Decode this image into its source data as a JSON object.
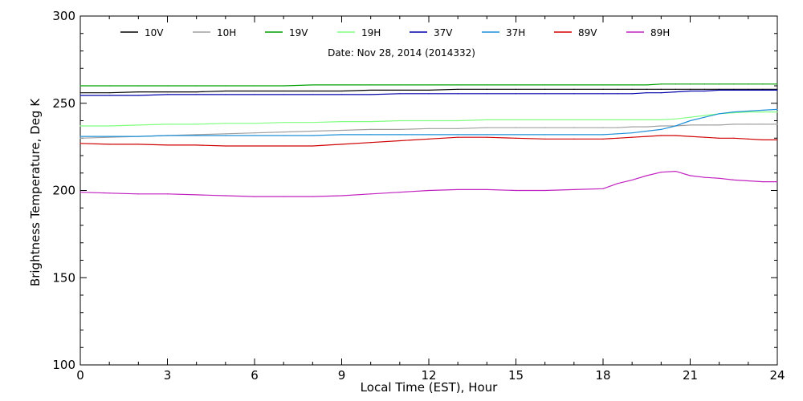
{
  "chart_data": {
    "type": "line",
    "subtitle": "Date: Nov 28, 2014 (2014332)",
    "xlabel": "Local Time (EST), Hour",
    "ylabel": "Brightness Temperature, Deg K",
    "xlim": [
      0,
      24
    ],
    "ylim": [
      100,
      300
    ],
    "x_ticks": [
      "0",
      "3",
      "6",
      "9",
      "12",
      "15",
      "18",
      "21",
      "24"
    ],
    "y_ticks": [
      "100",
      "150",
      "200",
      "250",
      "300"
    ],
    "grid": false,
    "legend_position": "top",
    "x": [
      0,
      1,
      2,
      3,
      4,
      5,
      6,
      7,
      8,
      9,
      10,
      11,
      12,
      13,
      14,
      15,
      16,
      17,
      18,
      18.5,
      19,
      19.5,
      20,
      20.5,
      21,
      21.5,
      22,
      22.5,
      23,
      23.5,
      24
    ],
    "series": [
      {
        "name": "10V",
        "color": "#000000",
        "values": [
          256,
          256,
          256.5,
          256.5,
          256.5,
          257,
          257,
          257,
          257,
          257,
          257.5,
          257.5,
          257.5,
          258,
          258,
          258,
          258,
          258,
          258,
          258,
          258,
          258,
          258,
          258,
          258,
          258,
          258,
          258,
          258,
          258,
          258
        ]
      },
      {
        "name": "10H",
        "color": "#a0a0a0",
        "values": [
          230,
          230.5,
          231,
          231.5,
          232,
          232.5,
          233,
          233.5,
          234,
          234.5,
          235,
          235,
          235.5,
          235.5,
          236,
          236,
          236,
          236,
          236,
          236,
          236.5,
          236.5,
          237,
          237,
          237.5,
          237.5,
          237.5,
          238,
          238,
          238,
          238
        ]
      },
      {
        "name": "19V",
        "color": "#00a000",
        "values": [
          260,
          260,
          260,
          260,
          260,
          260,
          260,
          260,
          260.5,
          260.5,
          260.5,
          260.5,
          260.5,
          260.5,
          260.5,
          260.5,
          260.5,
          260.5,
          260.5,
          260.5,
          260.5,
          260.5,
          261,
          261,
          261,
          261,
          261,
          261,
          261,
          261,
          261
        ]
      },
      {
        "name": "19H",
        "color": "#80ff80",
        "values": [
          237,
          237,
          237.5,
          238,
          238,
          238.5,
          238.5,
          239,
          239,
          239.5,
          239.5,
          240,
          240,
          240,
          240.5,
          240.5,
          240.5,
          240.5,
          240.5,
          240.5,
          240.5,
          240.5,
          240.5,
          241,
          242,
          243,
          244,
          244.5,
          245,
          245,
          245
        ]
      },
      {
        "name": "37V",
        "color": "#0000aa",
        "values": [
          254.5,
          254.5,
          254.5,
          255,
          255,
          255,
          255,
          255,
          255,
          255,
          255,
          255.5,
          255.5,
          255.5,
          255.5,
          255.5,
          255.5,
          255.5,
          255.5,
          255.5,
          255.5,
          256,
          256,
          256.5,
          257,
          257,
          257.5,
          257.5,
          257.5,
          257.5,
          257.5
        ]
      },
      {
        "name": "37H",
        "color": "#1e8fd8",
        "values": [
          231,
          231,
          231,
          231.5,
          231.5,
          231.5,
          231.5,
          231.5,
          231.5,
          232,
          232,
          232,
          232,
          232,
          232,
          232,
          232,
          232,
          232,
          232.5,
          233,
          234,
          235,
          237,
          240,
          242,
          244,
          245,
          245.5,
          246,
          246.5
        ]
      },
      {
        "name": "89V",
        "color": "#d00000",
        "values": [
          227,
          226.5,
          226.5,
          226,
          226,
          225.5,
          225.5,
          225.5,
          225.5,
          226.5,
          227.5,
          228.5,
          229.5,
          230.5,
          230.5,
          230,
          229.5,
          229.5,
          229.5,
          230,
          230.5,
          231,
          231.5,
          231.5,
          231,
          230.5,
          230,
          230,
          229.5,
          229,
          229
        ]
      },
      {
        "name": "89H",
        "color": "#c020c0",
        "values": [
          199,
          198.5,
          198,
          198,
          197.5,
          197,
          196.5,
          196.5,
          196.5,
          197,
          198,
          199,
          200,
          200.5,
          200.5,
          200,
          200,
          200.5,
          201,
          204,
          206,
          208.5,
          210.5,
          211,
          208.5,
          207.5,
          207,
          206,
          205.5,
          205,
          205
        ]
      }
    ]
  }
}
